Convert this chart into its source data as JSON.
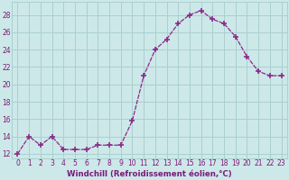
{
  "x": [
    0,
    1,
    2,
    3,
    4,
    5,
    6,
    7,
    8,
    9,
    10,
    11,
    12,
    13,
    14,
    15,
    16,
    17,
    18,
    19,
    20,
    21,
    22,
    23
  ],
  "y": [
    12,
    14,
    13,
    14,
    12.5,
    12.5,
    12.5,
    13,
    13,
    13,
    15.8,
    21,
    24,
    25.2,
    27,
    28,
    28.5,
    27.5,
    27,
    25.5,
    23.2,
    21.5,
    21,
    21
  ],
  "line_color": "#8b2a8b",
  "marker": "+",
  "marker_size": 4,
  "marker_lw": 1.2,
  "background_color": "#cde8e8",
  "grid_color": "#aacfcf",
  "xlabel": "Windchill (Refroidissement éolien,°C)",
  "ylabel": "",
  "ylim": [
    11.5,
    29.5
  ],
  "xlim": [
    -0.5,
    23.5
  ],
  "yticks": [
    12,
    14,
    16,
    18,
    20,
    22,
    24,
    26,
    28
  ],
  "xticks": [
    0,
    1,
    2,
    3,
    4,
    5,
    6,
    7,
    8,
    9,
    10,
    11,
    12,
    13,
    14,
    15,
    16,
    17,
    18,
    19,
    20,
    21,
    22,
    23
  ],
  "font_color": "#7a1a7a",
  "tick_fontsize": 5.5,
  "xlabel_fontsize": 6.2
}
